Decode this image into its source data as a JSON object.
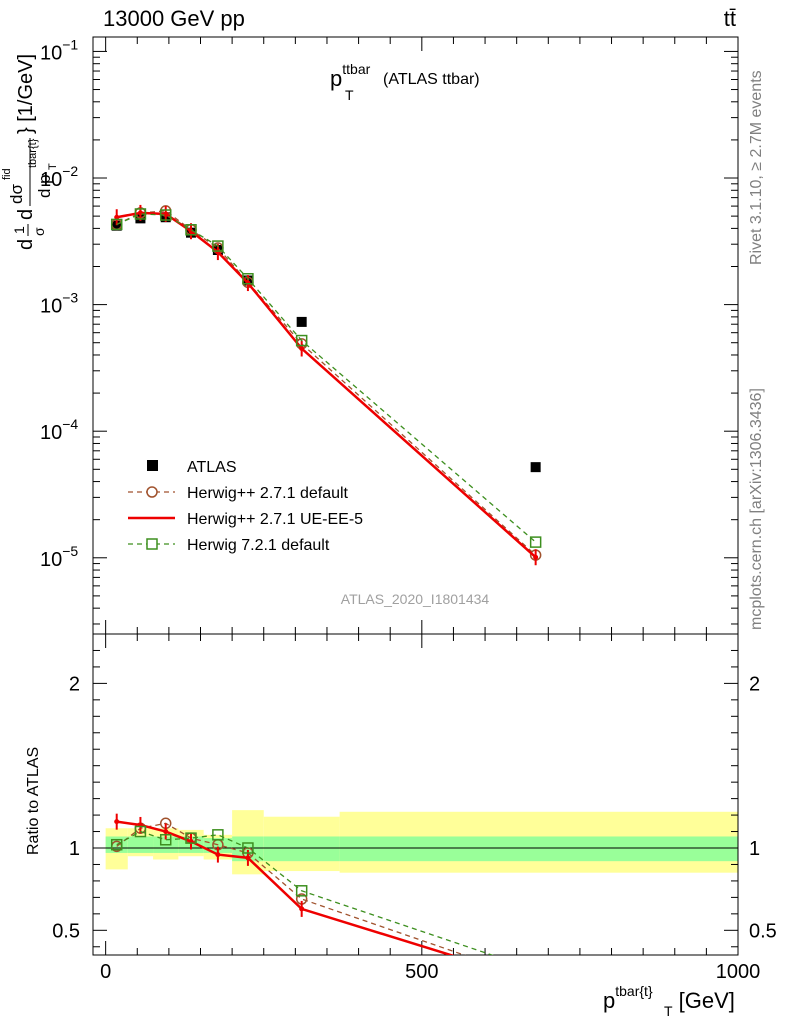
{
  "header": {
    "left": "13000 GeV pp",
    "right": "tt̄"
  },
  "side_labels": {
    "rivet": "Rivet 3.1.10, ≥ 2.7M events",
    "mcplots": "mcplots.cern.ch [arXiv:1306.3436]"
  },
  "analysis_id": "ATLAS_2020_I1801434",
  "chart_data": [
    {
      "type": "line",
      "panel": "main",
      "title": "p_T^{ttbar} (ATLAS ttbar)",
      "title_main": "p",
      "title_sup": "ttbar",
      "title_sub": "T",
      "title_rest": "(ATLAS ttbar)",
      "ylabel": "d(1/σ)dσ^{fid}/d p_T^{tbar{t}} } [1/GeV]",
      "ylabel_unit": "} [1/GeV]",
      "yscale": "log",
      "ylim": [
        2.5e-06,
        0.13
      ],
      "xlim": [
        -20,
        1000
      ],
      "yticks": [
        {
          "value": 0.1,
          "mant": "10",
          "exp": "−1"
        },
        {
          "value": 0.01,
          "mant": "10",
          "exp": "−2"
        },
        {
          "value": 0.001,
          "mant": "10",
          "exp": "−3"
        },
        {
          "value": 0.0001,
          "mant": "10",
          "exp": "−4"
        },
        {
          "value": 1e-05,
          "mant": "10",
          "exp": "−5"
        }
      ],
      "legend_position": "lower-left",
      "series": [
        {
          "name": "ATLAS",
          "color": "#000000",
          "style": "markers",
          "x": [
            17.5,
            55,
            95,
            135,
            177.5,
            225,
            310,
            680
          ],
          "y": [
            0.0042,
            0.0048,
            0.0049,
            0.0037,
            0.0027,
            0.00155,
            0.00073,
            5.2e-05
          ]
        },
        {
          "name": "Herwig++ 2.7.1 default",
          "color": "#a0522d",
          "style": "dashed-circle",
          "x": [
            17.5,
            55,
            95,
            135,
            177.5,
            225,
            310,
            680
          ],
          "y": [
            0.0043,
            0.0053,
            0.0055,
            0.0039,
            0.0028,
            0.0015,
            0.00049,
            1.05e-05
          ]
        },
        {
          "name": "Herwig++ 2.7.1 UE-EE-5",
          "color": "#ee0000",
          "style": "solid",
          "x": [
            17.5,
            55,
            95,
            135,
            177.5,
            225,
            310,
            680
          ],
          "y": [
            0.0049,
            0.0053,
            0.0052,
            0.0038,
            0.0026,
            0.00148,
            0.00045,
            1.01e-05
          ]
        },
        {
          "name": "Herwig 7.2.1 default",
          "color": "#3d8f1f",
          "style": "dashed-square",
          "x": [
            17.5,
            55,
            95,
            135,
            177.5,
            225,
            310,
            680
          ],
          "y": [
            0.0043,
            0.0052,
            0.0051,
            0.0039,
            0.0029,
            0.0016,
            0.00052,
            1.33e-05
          ]
        }
      ]
    },
    {
      "type": "line",
      "panel": "ratio",
      "ylabel": "Ratio to ATLAS",
      "xlabel": "p_T^{tbar{t}} [GeV]",
      "xlabel_main": "p",
      "xlabel_sup": "tbar{t}",
      "xlabel_sub": "T",
      "xlabel_rest": " [GeV]",
      "xlim": [
        -20,
        1000
      ],
      "ylim": [
        0.35,
        2.3
      ],
      "xticks": [
        0,
        500,
        1000
      ],
      "yticks": [
        0.5,
        1,
        2
      ],
      "bands": {
        "edges": [
          0,
          35,
          75,
          115,
          155,
          200,
          250,
          370,
          1000
        ],
        "stat": [
          [
            0.97,
            1.07
          ],
          [
            0.97,
            1.07
          ],
          [
            0.97,
            1.07
          ],
          [
            0.97,
            1.07
          ],
          [
            0.97,
            1.06
          ],
          [
            0.92,
            1.07
          ],
          [
            0.92,
            1.07
          ],
          [
            0.92,
            1.07
          ]
        ],
        "total": [
          [
            0.87,
            1.12
          ],
          [
            0.95,
            1.12
          ],
          [
            0.93,
            1.12
          ],
          [
            0.95,
            1.11
          ],
          [
            0.93,
            1.08
          ],
          [
            0.84,
            1.23
          ],
          [
            0.86,
            1.19
          ],
          [
            0.85,
            1.22
          ]
        ],
        "stat_color": "#99ff99",
        "total_color": "#ffff99"
      },
      "series": [
        {
          "name": "Herwig++ 2.7.1 default",
          "color": "#a0522d",
          "style": "dashed-circle",
          "x": [
            17.5,
            55,
            95,
            135,
            177.5,
            225,
            310,
            680
          ],
          "y": [
            1.01,
            1.12,
            1.15,
            1.06,
            1.02,
            0.97,
            0.69,
            0.2
          ]
        },
        {
          "name": "Herwig++ 2.7.1 UE-EE-5",
          "color": "#ee0000",
          "style": "solid",
          "x": [
            17.5,
            55,
            95,
            135,
            177.5,
            225,
            310,
            680
          ],
          "y": [
            1.16,
            1.14,
            1.1,
            1.04,
            0.96,
            0.94,
            0.63,
            0.19
          ]
        },
        {
          "name": "Herwig 7.2.1 default",
          "color": "#3d8f1f",
          "style": "dashed-square",
          "x": [
            17.5,
            55,
            95,
            135,
            177.5,
            225,
            310,
            680
          ],
          "y": [
            1.02,
            1.1,
            1.05,
            1.06,
            1.08,
            1.0,
            0.74,
            0.26
          ]
        }
      ]
    }
  ]
}
